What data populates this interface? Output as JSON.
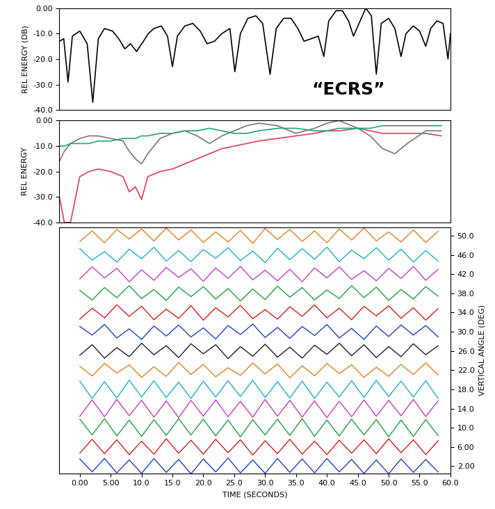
{
  "chart_data": [
    {
      "type": "line",
      "y_label": "REL ENERGY (DB)",
      "annotations": [
        {
          "text": "“ECRS”"
        }
      ],
      "tick_labels": "y",
      "xlim": [
        -3.3,
        60
      ],
      "ylim": [
        -40,
        0
      ],
      "yticks": [
        {
          "value": 0,
          "label": "0.00"
        },
        {
          "value": -10,
          "label": "-10.0"
        },
        {
          "value": -20,
          "label": "-20.0"
        },
        {
          "value": -30,
          "label": "-30.0"
        },
        {
          "value": -40,
          "label": "-40.0"
        }
      ],
      "series": [
        {
          "color": "#000000",
          "x": [
            -3.3,
            -2.6,
            -1.9,
            -1.2,
            0,
            1.2,
            2.1,
            3,
            4,
            5.3,
            6.3,
            7.3,
            8.2,
            9.2,
            10.3,
            11.1,
            12,
            13.2,
            14.2,
            15,
            15.8,
            17,
            18.3,
            19.5,
            20.6,
            21.8,
            23,
            24.3,
            25.1,
            26,
            27.2,
            28.5,
            29.6,
            30.8,
            31.8,
            33,
            34.2,
            35.3,
            36.3,
            37.5,
            38.6,
            39.5,
            40.3,
            41.5,
            42.5,
            43.5,
            44.3,
            45.2,
            46.3,
            47.2,
            48,
            48.8,
            50,
            51,
            52,
            52.8,
            54,
            55,
            56,
            56.8,
            57.8,
            58.8,
            59.6,
            60
          ],
          "values": [
            -13,
            -12,
            -29,
            -11,
            -9,
            -14,
            -37,
            -12,
            -8,
            -9,
            -12,
            -16,
            -14,
            -17,
            -13,
            -10,
            -8,
            -7,
            -11,
            -23,
            -11,
            -7,
            -6,
            -9,
            -14,
            -13,
            -10,
            -8,
            -25,
            -10,
            -4,
            -3,
            -6,
            -26,
            -8,
            -4,
            -4,
            -8,
            -13,
            -12,
            -11,
            -19,
            -5,
            -1,
            -1,
            -5,
            -11,
            -6,
            0,
            -3,
            -26,
            -6,
            -4,
            -8,
            -19,
            -10,
            -7,
            -9,
            -15,
            -8,
            -5,
            -6,
            -20,
            -10
          ]
        }
      ]
    },
    {
      "type": "line",
      "y_label": "REL ENERGY",
      "tick_labels": "y",
      "xlim": [
        -3.3,
        60
      ],
      "ylim": [
        -40,
        0
      ],
      "yticks": [
        {
          "value": 0,
          "label": "0.00"
        },
        {
          "value": -10,
          "label": "-10.0"
        },
        {
          "value": -20,
          "label": "-20.0"
        },
        {
          "value": -30,
          "label": "-30.0"
        },
        {
          "value": -40,
          "label": "-40.0"
        }
      ],
      "x": [
        -3.3,
        -2.5,
        -1.5,
        0,
        1.5,
        3,
        5,
        7,
        8,
        9,
        10,
        11,
        13,
        15,
        17,
        19,
        21,
        23,
        25,
        27,
        29,
        32,
        35,
        38,
        40,
        42,
        45,
        47,
        49,
        51,
        53,
        56,
        58.5
      ],
      "series": [
        {
          "color": "#e03c5a",
          "values": [
            -30,
            -40,
            -40,
            -22,
            -20,
            -19,
            -20,
            -22,
            -28,
            -26,
            -31,
            -22,
            -20,
            -19,
            -17,
            -15,
            -13,
            -11,
            -10,
            -9,
            -8,
            -7,
            -6,
            -5,
            -4,
            -4,
            -3,
            -4,
            -5,
            -5,
            -5,
            -5,
            -6
          ]
        },
        {
          "color": "#777777",
          "values": [
            -16,
            -12,
            -9,
            -7,
            -6,
            -6,
            -7,
            -8,
            -12,
            -15,
            -17,
            -13,
            -7,
            -5,
            -4,
            -6,
            -9,
            -6,
            -4,
            -2,
            -1,
            -2,
            -5,
            -3,
            -1,
            0,
            -3,
            -6,
            -11,
            -13,
            -9,
            -4,
            -4
          ]
        },
        {
          "color": "#1fa37a",
          "values": [
            -10,
            -10,
            -9,
            -9,
            -9,
            -8,
            -8,
            -7,
            -7,
            -7,
            -6,
            -6,
            -5,
            -5,
            -4,
            -4,
            -3,
            -4,
            -5,
            -5,
            -4,
            -3,
            -3,
            -4,
            -4,
            -3,
            -3,
            -3,
            -2,
            -2,
            -2,
            -2,
            -2
          ]
        }
      ]
    },
    {
      "type": "wiggle",
      "x_label": "TIME (SECONDS)",
      "y_label": "VERTICAL ANGLE (DEG)",
      "xlim": [
        -3.3,
        60
      ],
      "ylim": [
        0.5,
        51.7
      ],
      "xticks": [
        {
          "value": 0,
          "label": "0.00"
        },
        {
          "value": 5,
          "label": "5.00"
        },
        {
          "value": 10,
          "label": "10.0"
        },
        {
          "value": 15,
          "label": "15.0"
        },
        {
          "value": 20,
          "label": "20.0"
        },
        {
          "value": 25,
          "label": "25.0"
        },
        {
          "value": 30,
          "label": "30.0"
        },
        {
          "value": 35,
          "label": "35.0"
        },
        {
          "value": 40,
          "label": "40.0"
        },
        {
          "value": 45,
          "label": "45.0"
        },
        {
          "value": 50,
          "label": "50.0"
        },
        {
          "value": 55,
          "label": "55.0"
        },
        {
          "value": 60,
          "label": "60.0"
        }
      ],
      "yticks": [
        {
          "value": 2,
          "label": "2.00"
        },
        {
          "value": 6,
          "label": "6.00"
        },
        {
          "value": 10,
          "label": "10.0"
        },
        {
          "value": 14,
          "label": "14.0"
        },
        {
          "value": 18,
          "label": "18.0"
        },
        {
          "value": 22,
          "label": "22.0"
        },
        {
          "value": 26,
          "label": "26.0"
        },
        {
          "value": 30,
          "label": "30.0"
        },
        {
          "value": 34,
          "label": "34.0"
        },
        {
          "value": 38,
          "label": "38.0"
        },
        {
          "value": 42,
          "label": "42.0"
        },
        {
          "value": 46,
          "label": "46.0"
        },
        {
          "value": 50,
          "label": "50.0"
        }
      ],
      "x": [
        0,
        2,
        4,
        6,
        8,
        10,
        12,
        14,
        16,
        18,
        20,
        22,
        24,
        26,
        28,
        30,
        32,
        34,
        36,
        38,
        40,
        42,
        44,
        46,
        48,
        50,
        52,
        54,
        56,
        58
      ],
      "traces": [
        {
          "angle": 2,
          "color": "#1f3fbf",
          "values": [
            1.5,
            -1.2,
            1.6,
            -1.4,
            1.3,
            -1.5,
            1.6,
            -1.3,
            1.4,
            -1.6,
            1.5,
            -1.2,
            1.7,
            -1.4,
            1.3,
            -1.5,
            1.6,
            -1.3,
            1.5,
            -1.4,
            1.6,
            -1.2,
            1.4,
            -1.5,
            1.3,
            -1.6,
            1.5,
            -1.3,
            1.4,
            -1.2
          ]
        },
        {
          "angle": 6,
          "color": "#d02020",
          "values": [
            -1.3,
            1.6,
            -1.4,
            1.5,
            -1.6,
            1.2,
            -1.5,
            1.7,
            -1.3,
            1.4,
            -1.5,
            1.6,
            -1.2,
            1.5,
            -1.7,
            1.3,
            -1.4,
            1.6,
            -1.5,
            1.2,
            -1.6,
            1.4,
            -1.3,
            1.5,
            -1.4,
            1.7,
            -1.2,
            1.5,
            -1.6,
            1.3
          ]
        },
        {
          "angle": 10,
          "color": "#20a040",
          "values": [
            1.8,
            -1.5,
            1.9,
            -1.7,
            1.6,
            -1.8,
            1.7,
            -1.6,
            1.9,
            -1.5,
            1.8,
            -1.7,
            1.6,
            -1.9,
            1.7,
            -1.5,
            1.8,
            -1.6,
            1.9,
            -1.8,
            1.6,
            -1.7,
            1.8,
            -1.5,
            1.7,
            -1.9,
            1.6,
            -1.8,
            1.7,
            -1.6
          ]
        },
        {
          "angle": 14,
          "color": "#c040c0",
          "values": [
            -1.6,
            1.8,
            -1.7,
            1.9,
            -1.5,
            1.7,
            -1.8,
            1.6,
            -1.9,
            1.7,
            -1.6,
            1.8,
            -1.7,
            1.5,
            -1.8,
            1.9,
            -1.6,
            1.7,
            -1.8,
            1.6,
            -1.9,
            1.5,
            -1.7,
            1.8,
            -1.6,
            1.7,
            -1.5,
            1.9,
            -1.7,
            1.6
          ]
        },
        {
          "angle": 18,
          "color": "#20b0c0",
          "values": [
            1.7,
            -1.9,
            1.6,
            -1.8,
            1.9,
            -1.6,
            1.8,
            -1.7,
            1.5,
            -1.9,
            1.7,
            -1.6,
            1.8,
            -1.5,
            1.9,
            -1.7,
            1.6,
            -1.8,
            1.7,
            -1.9,
            1.5,
            -1.6,
            1.8,
            -1.7,
            1.9,
            -1.5,
            1.7,
            -1.6,
            1.8,
            -1.9
          ]
        },
        {
          "angle": 22,
          "color": "#e08020",
          "values": [
            0.8,
            -1.2,
            1.4,
            -0.6,
            1.1,
            -1.5,
            0.7,
            -1.3,
            1.6,
            -0.9,
            1.2,
            -1.4,
            0.5,
            -1.1,
            1.5,
            -0.8,
            1.3,
            -1.6,
            0.9,
            -1.2,
            1.4,
            -0.7,
            1.1,
            -1.5,
            0.6,
            -1.3,
            1.2,
            -0.9,
            1.5,
            -1.0
          ]
        },
        {
          "angle": 26,
          "color": "#202020",
          "values": [
            -0.9,
            1.3,
            -1.5,
            0.7,
            -1.2,
            1.6,
            -0.8,
            1.1,
            -1.4,
            1.5,
            -0.6,
            1.3,
            -1.6,
            0.9,
            -1.1,
            1.4,
            -1.3,
            0.8,
            -1.5,
            1.2,
            -0.7,
            1.6,
            -1.0,
            1.3,
            -1.4,
            0.9,
            -1.2,
            1.5,
            -0.8,
            1.1
          ]
        },
        {
          "angle": 30,
          "color": "#1f3fbf",
          "values": [
            1.1,
            -0.7,
            1.5,
            -1.3,
            0.6,
            -1.6,
            1.2,
            -0.9,
            1.4,
            -1.1,
            0.8,
            -1.5,
            1.3,
            -0.6,
            1.6,
            -1.2,
            0.9,
            -1.4,
            1.1,
            -0.8,
            1.5,
            -1.3,
            0.7,
            -1.6,
            1.2,
            -1.0,
            1.4,
            -0.7,
            1.3,
            -1.1
          ]
        },
        {
          "angle": 34,
          "color": "#d02020",
          "values": [
            -1.4,
            0.9,
            -1.1,
            1.6,
            -0.8,
            1.3,
            -1.5,
            0.7,
            -1.2,
            1.4,
            -1.6,
            1.0,
            -0.9,
            1.5,
            -1.3,
            0.6,
            -1.4,
            1.2,
            -0.8,
            1.6,
            -1.1,
            0.9,
            -1.5,
            1.3,
            -0.7,
            1.4,
            -1.2,
            1.0,
            -1.6,
            0.8
          ]
        },
        {
          "angle": 38,
          "color": "#20a040",
          "values": [
            0.6,
            -1.4,
            1.2,
            -0.9,
            1.6,
            -1.1,
            0.8,
            -1.5,
            1.3,
            -0.7,
            1.4,
            -1.2,
            1.0,
            -1.6,
            0.9,
            -1.3,
            1.5,
            -0.8,
            1.2,
            -1.4,
            0.7,
            -1.1,
            1.6,
            -0.9,
            1.3,
            -1.5,
            0.8,
            -1.2,
            1.4,
            -0.6
          ]
        },
        {
          "angle": 42,
          "color": "#c040c0",
          "values": [
            -1.0,
            1.5,
            -0.8,
            1.2,
            -1.6,
            0.9,
            -1.3,
            1.4,
            -0.7,
            1.1,
            -1.5,
            1.3,
            -0.9,
            1.6,
            -1.2,
            0.8,
            -1.4,
            1.0,
            -1.6,
            1.3,
            -0.8,
            1.5,
            -1.1,
            0.7,
            -1.4,
            1.2,
            -0.9,
            1.6,
            -1.3,
            1.0
          ]
        },
        {
          "angle": 46,
          "color": "#20b0c0",
          "values": [
            1.3,
            -1.1,
            0.7,
            -1.5,
            1.2,
            -0.8,
            1.6,
            -1.3,
            0.9,
            -1.4,
            1.1,
            -0.7,
            1.5,
            -1.2,
            0.8,
            -1.6,
            1.4,
            -1.0,
            1.3,
            -0.9,
            1.6,
            -1.4,
            1.0,
            -0.8,
            1.5,
            -1.1,
            1.2,
            -1.5,
            0.9,
            -1.3
          ]
        },
        {
          "angle": 50,
          "color": "#e08020",
          "values": [
            -1.2,
            1.0,
            -1.5,
            1.3,
            -0.7,
            1.4,
            -1.1,
            1.6,
            -0.9,
            1.2,
            -1.4,
            0.8,
            -1.3,
            1.1,
            -1.6,
            1.5,
            -0.8,
            1.3,
            -1.2,
            1.0,
            -1.5,
            1.4,
            -0.9,
            1.6,
            -1.1,
            0.8,
            -1.3,
            1.2,
            -1.4,
            0.9
          ]
        }
      ]
    }
  ]
}
